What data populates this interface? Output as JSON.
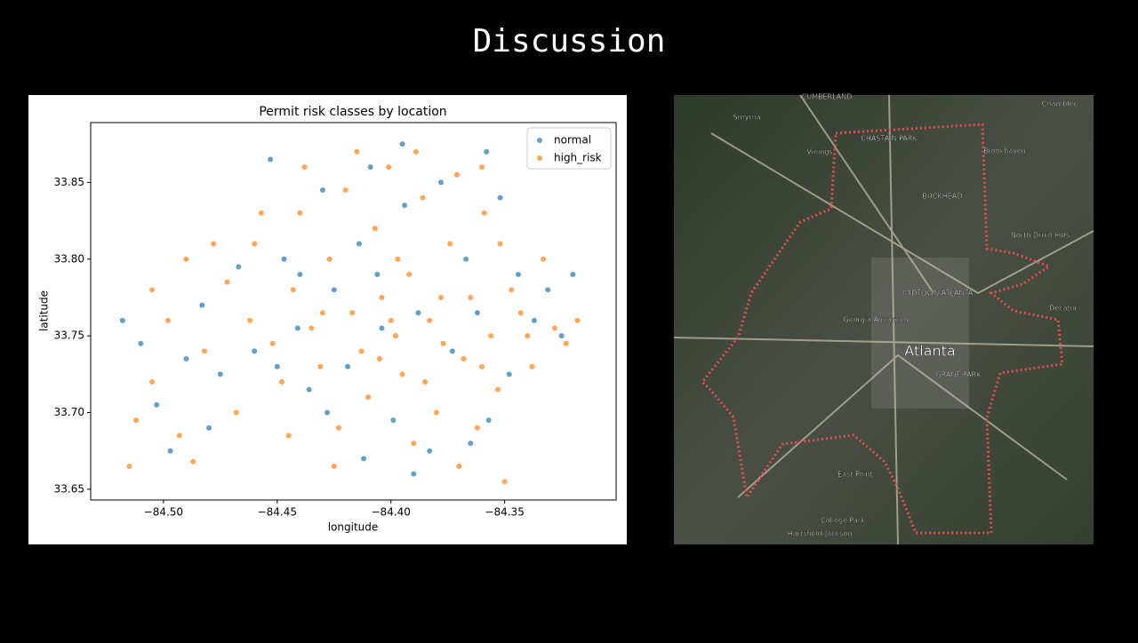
{
  "header": {
    "title": "Discussion"
  },
  "chart_data": {
    "type": "scatter",
    "title": "Permit risk classes by location",
    "xlabel": "longitude",
    "ylabel": "latitude",
    "xlim": [
      -84.532,
      -84.301
    ],
    "ylim": [
      33.643,
      33.889
    ],
    "xticks": [
      {
        "value": -84.5,
        "label": "−84.50"
      },
      {
        "value": -84.45,
        "label": "−84.45"
      },
      {
        "value": -84.4,
        "label": "−84.40"
      },
      {
        "value": -84.35,
        "label": "−84.35"
      }
    ],
    "yticks": [
      33.65,
      {
        "value": 33.7,
        "label": "33.70"
      },
      33.75,
      {
        "value": 33.8,
        "label": "33.80"
      },
      33.85
    ],
    "legend": "upper right",
    "series": [
      {
        "name": "normal",
        "color": "#1f77b4",
        "x": [
          -84.518,
          -84.51,
          -84.503,
          -84.497,
          -84.49,
          -84.483,
          -84.475,
          -84.467,
          -84.46,
          -84.453,
          -84.447,
          -84.441,
          -84.436,
          -84.43,
          -84.425,
          -84.419,
          -84.414,
          -84.409,
          -84.404,
          -84.399,
          -84.394,
          -84.388,
          -84.383,
          -84.378,
          -84.373,
          -84.367,
          -84.362,
          -84.357,
          -84.352,
          -84.348,
          -84.344,
          -84.337,
          -84.331,
          -84.325,
          -84.32,
          -84.412,
          -84.39,
          -84.365,
          -84.428,
          -84.45,
          -84.48,
          -84.395,
          -84.358,
          -84.44,
          -84.406
        ],
        "values": [
          33.76,
          33.745,
          33.705,
          33.675,
          33.735,
          33.77,
          33.725,
          33.795,
          33.74,
          33.865,
          33.8,
          33.755,
          33.715,
          33.845,
          33.78,
          33.73,
          33.81,
          33.86,
          33.755,
          33.695,
          33.835,
          33.765,
          33.675,
          33.85,
          33.74,
          33.8,
          33.765,
          33.695,
          33.84,
          33.725,
          33.79,
          33.76,
          33.78,
          33.75,
          33.79,
          33.67,
          33.66,
          33.68,
          33.7,
          33.73,
          33.69,
          33.875,
          33.87,
          33.79,
          33.79
        ]
      },
      {
        "name": "high_risk",
        "color": "#ff7f0e",
        "x": [
          -84.512,
          -84.505,
          -84.498,
          -84.493,
          -84.487,
          -84.482,
          -84.478,
          -84.472,
          -84.468,
          -84.462,
          -84.457,
          -84.452,
          -84.448,
          -84.443,
          -84.438,
          -84.435,
          -84.431,
          -84.427,
          -84.423,
          -84.42,
          -84.417,
          -84.413,
          -84.41,
          -84.407,
          -84.404,
          -84.401,
          -84.398,
          -84.395,
          -84.392,
          -84.389,
          -84.386,
          -84.383,
          -84.38,
          -84.377,
          -84.374,
          -84.371,
          -84.368,
          -84.365,
          -84.362,
          -84.359,
          -84.356,
          -84.353,
          -84.35,
          -84.347,
          -84.343,
          -84.338,
          -84.333,
          -84.328,
          -84.323,
          -84.318,
          -84.445,
          -84.425,
          -84.39,
          -84.37,
          -84.505,
          -84.49,
          -84.515,
          -84.46,
          -84.44,
          -84.415,
          -84.397,
          -84.385,
          -84.36,
          -84.352,
          -84.405,
          -84.43,
          -84.4,
          -84.378,
          -84.34,
          -84.36
        ],
        "values": [
          33.695,
          33.72,
          33.76,
          33.685,
          33.668,
          33.74,
          33.81,
          33.785,
          33.7,
          33.76,
          33.83,
          33.745,
          33.72,
          33.78,
          33.86,
          33.755,
          33.73,
          33.8,
          33.69,
          33.845,
          33.765,
          33.74,
          33.71,
          33.82,
          33.775,
          33.86,
          33.75,
          33.725,
          33.79,
          33.87,
          33.84,
          33.76,
          33.7,
          33.745,
          33.81,
          33.855,
          33.735,
          33.775,
          33.69,
          33.83,
          33.75,
          33.715,
          33.655,
          33.78,
          33.765,
          33.73,
          33.8,
          33.755,
          33.745,
          33.76,
          33.685,
          33.665,
          33.68,
          33.665,
          33.78,
          33.8,
          33.665,
          33.81,
          33.83,
          33.87,
          33.8,
          33.72,
          33.86,
          33.81,
          33.735,
          33.765,
          33.76,
          33.775,
          33.75,
          33.73
        ]
      }
    ]
  },
  "map": {
    "labels": [
      "CUMBERLAND",
      "Smyrna",
      "Vinings",
      "CHASTAIN PARK",
      "BUCKHEAD",
      "Brookhaven",
      "Chamblee",
      "North Druid Hills",
      "MIDTOWN ATLANTA",
      "Georgia Aquarium",
      "Atlanta",
      "GRANT PARK",
      "Decatur",
      "East Point",
      "College Park",
      "Hartsfield-Jackson"
    ]
  }
}
